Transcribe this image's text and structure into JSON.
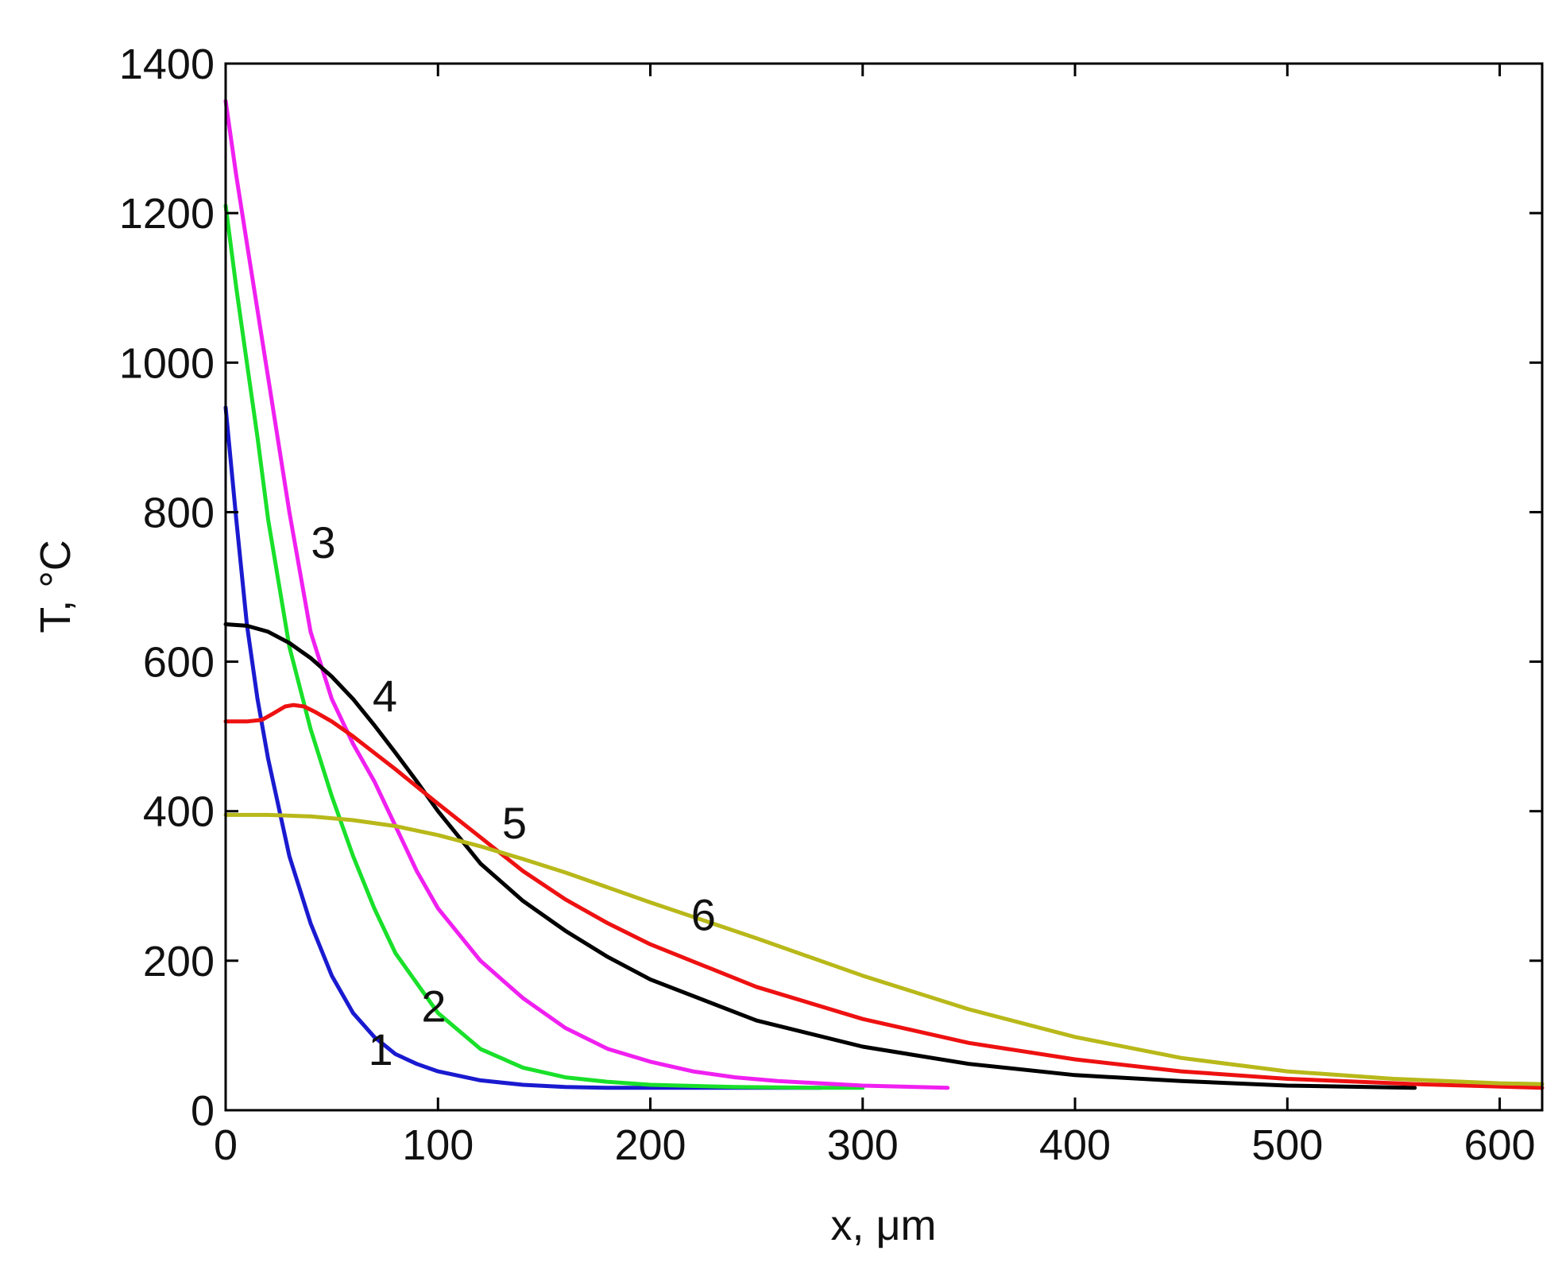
{
  "chart_data": {
    "type": "line",
    "xlabel": "x, μm",
    "ylabel": "T, °C",
    "xlim": [
      0,
      620
    ],
    "ylim": [
      0,
      1400
    ],
    "xticks": [
      0,
      100,
      200,
      300,
      400,
      500,
      600
    ],
    "yticks": [
      0,
      200,
      400,
      600,
      800,
      1000,
      1200,
      1400
    ],
    "xtick_labels": [
      "0",
      "100",
      "200",
      "300",
      "400",
      "500",
      "600"
    ],
    "ytick_labels": [
      "0",
      "200",
      "400",
      "600",
      "800",
      "1000",
      "1200",
      "1400"
    ],
    "grid": false,
    "series": [
      {
        "label": "1",
        "color": "#1a1ad0",
        "label_pos": [
          73,
          82
        ],
        "x": [
          0,
          5,
          10,
          15,
          20,
          30,
          40,
          50,
          60,
          70,
          80,
          90,
          100,
          120,
          140,
          160,
          180,
          200,
          240,
          280
        ],
        "y": [
          940,
          790,
          650,
          550,
          470,
          340,
          250,
          180,
          130,
          98,
          75,
          62,
          52,
          40,
          34,
          31,
          30,
          30,
          30,
          30
        ]
      },
      {
        "label": "2",
        "color": "#19e02a",
        "label_pos": [
          98,
          140
        ],
        "x": [
          0,
          5,
          10,
          15,
          20,
          30,
          40,
          50,
          60,
          70,
          80,
          100,
          120,
          140,
          160,
          180,
          200,
          240,
          280,
          300
        ],
        "y": [
          1210,
          1100,
          1000,
          900,
          790,
          620,
          510,
          420,
          340,
          270,
          210,
          130,
          82,
          57,
          44,
          38,
          34,
          31,
          30,
          30
        ]
      },
      {
        "label": "3",
        "color": "#f020f0",
        "label_pos": [
          46,
          760
        ],
        "x": [
          0,
          5,
          10,
          20,
          30,
          40,
          50,
          60,
          70,
          80,
          90,
          100,
          120,
          140,
          160,
          180,
          200,
          220,
          240,
          260,
          300,
          340
        ],
        "y": [
          1350,
          1250,
          1160,
          980,
          800,
          640,
          550,
          490,
          440,
          380,
          320,
          270,
          200,
          150,
          110,
          82,
          65,
          52,
          44,
          39,
          33,
          30
        ]
      },
      {
        "label": "4",
        "color": "#000000",
        "label_pos": [
          75,
          555
        ],
        "x": [
          0,
          10,
          20,
          30,
          40,
          50,
          60,
          70,
          80,
          90,
          100,
          120,
          140,
          160,
          180,
          200,
          250,
          300,
          350,
          400,
          450,
          500,
          560
        ],
        "y": [
          650,
          648,
          640,
          625,
          605,
          580,
          550,
          515,
          478,
          440,
          400,
          330,
          280,
          240,
          205,
          175,
          120,
          85,
          62,
          47,
          39,
          33,
          30
        ]
      },
      {
        "label": "5",
        "color": "#ee1111",
        "label_pos": [
          136,
          385
        ],
        "x": [
          0,
          10,
          17,
          22,
          28,
          32,
          37,
          42,
          50,
          60,
          70,
          80,
          90,
          100,
          120,
          140,
          160,
          180,
          200,
          250,
          300,
          350,
          400,
          450,
          500,
          560,
          620
        ],
        "y": [
          520,
          520,
          522,
          530,
          540,
          542,
          540,
          533,
          520,
          500,
          478,
          456,
          433,
          410,
          365,
          320,
          282,
          250,
          222,
          165,
          122,
          90,
          68,
          52,
          42,
          35,
          30
        ]
      },
      {
        "label": "6",
        "color": "#b8b81a",
        "label_pos": [
          225,
          262
        ],
        "x": [
          0,
          20,
          40,
          60,
          80,
          100,
          120,
          140,
          160,
          180,
          200,
          250,
          300,
          350,
          400,
          450,
          500,
          550,
          600,
          620
        ],
        "y": [
          395,
          395,
          393,
          388,
          380,
          368,
          353,
          336,
          318,
          298,
          278,
          230,
          180,
          135,
          98,
          70,
          52,
          42,
          36,
          35
        ]
      }
    ]
  }
}
